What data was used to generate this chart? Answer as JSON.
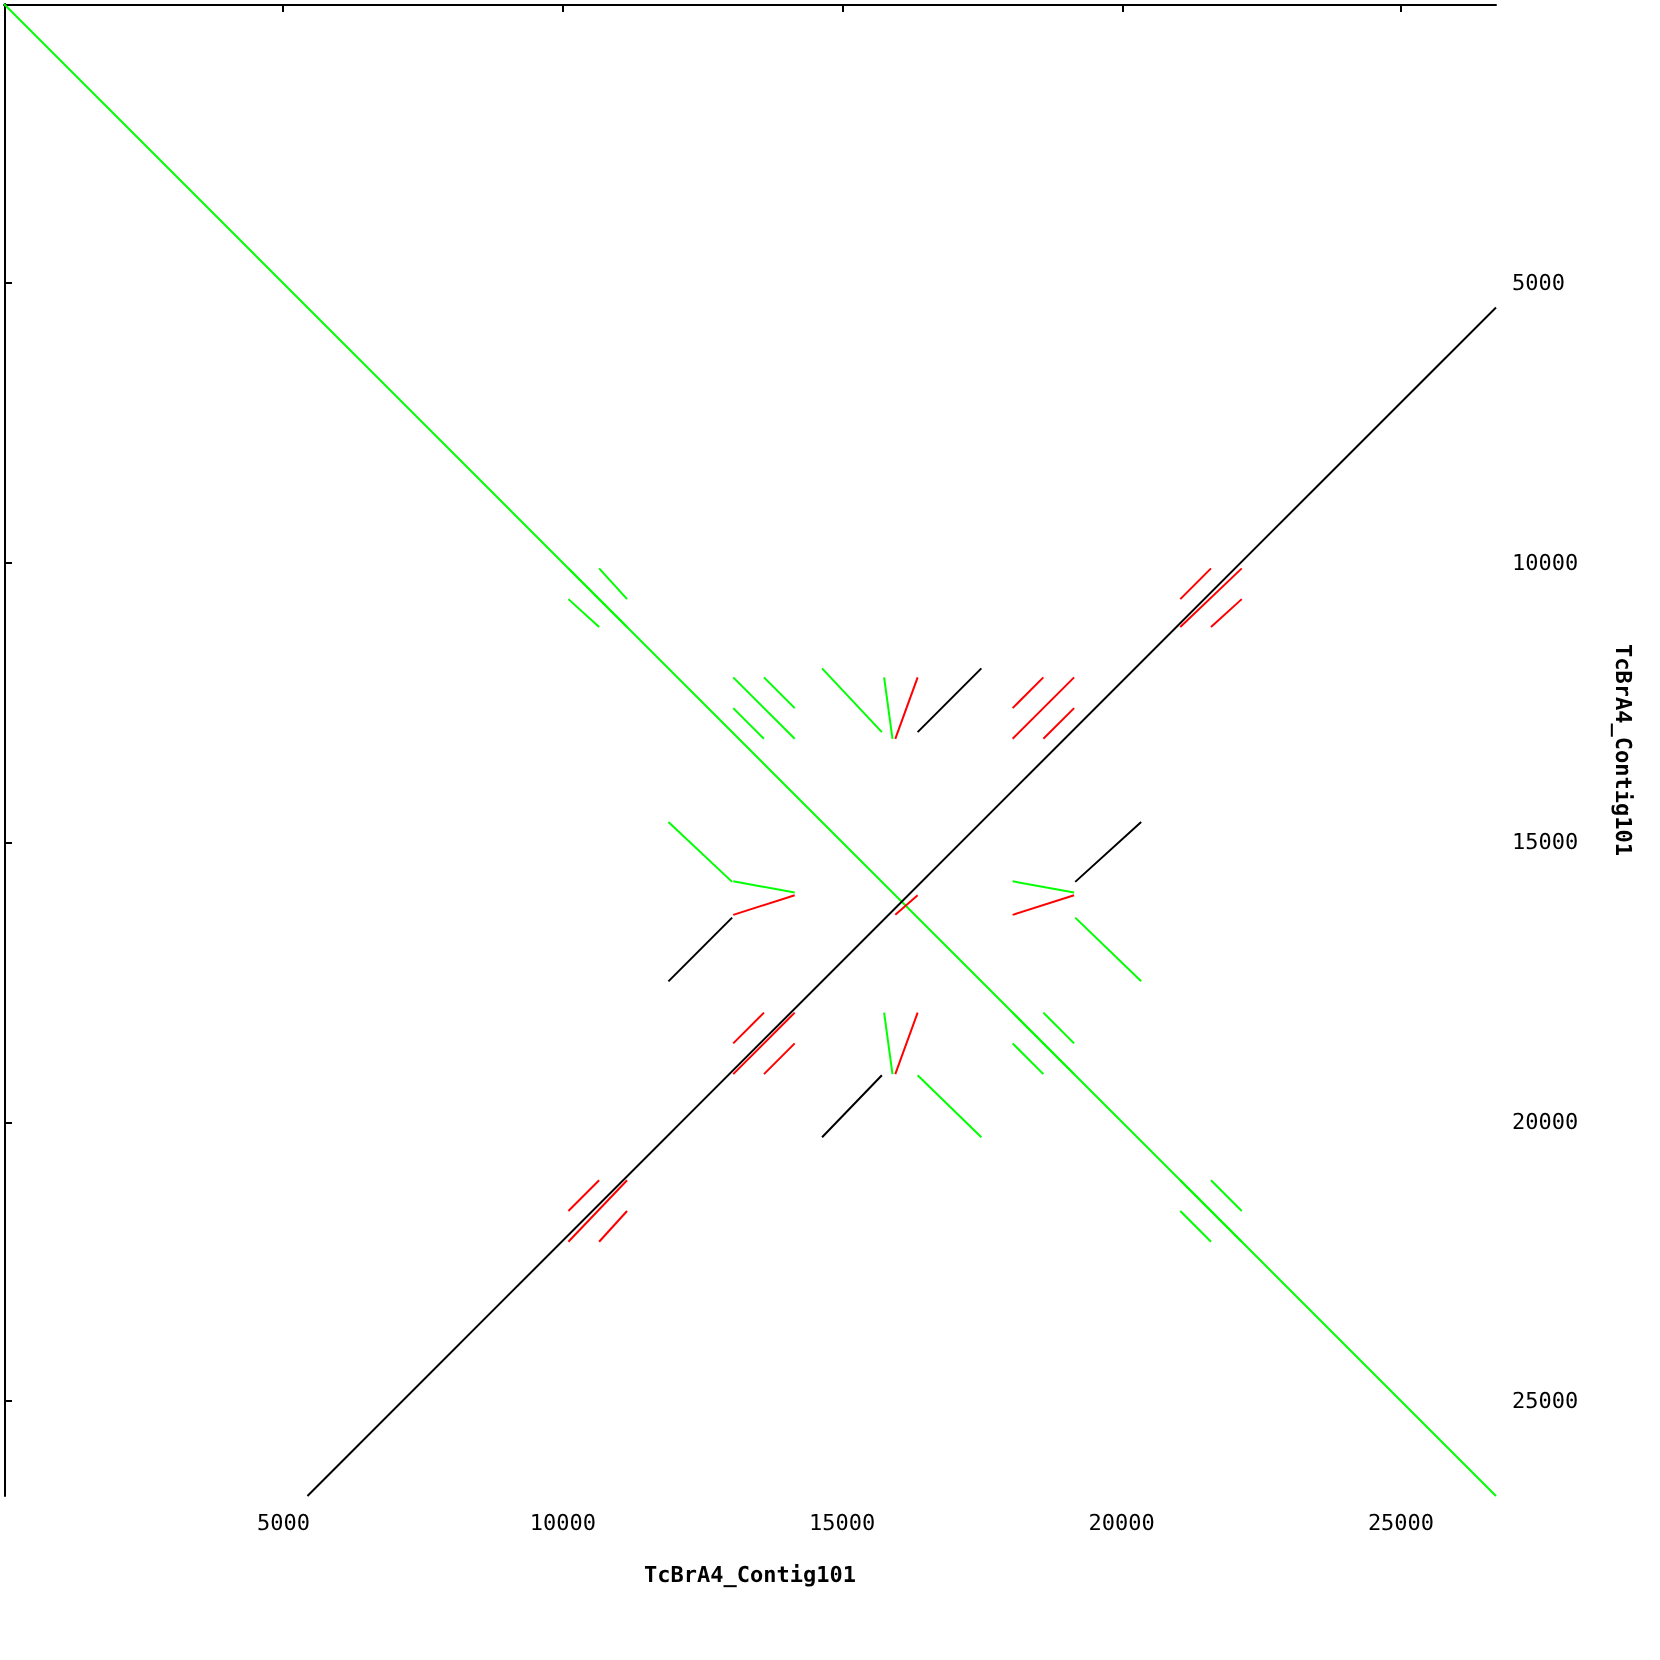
{
  "chart_data": {
    "type": "line",
    "xlabel": "TcBrA4_Contig101",
    "ylabel": "TcBrA4_Contig101",
    "xlim": [
      0,
      26700
    ],
    "ylim": [
      26700,
      0
    ],
    "xticks": [
      5000,
      10000,
      15000,
      20000,
      25000
    ],
    "yticks": [
      5000,
      10000,
      15000,
      20000,
      25000
    ],
    "grid": false,
    "series": [
      {
        "color": "#00ff00",
        "x": [
          0,
          26700
        ],
        "values": [
          0,
          26700
        ]
      },
      {
        "color": "#000000",
        "x": [
          5430,
          26700
        ],
        "values": [
          26700,
          5430
        ]
      },
      {
        "color": "#00ff00",
        "x": [
          14640,
          15710,
          null,
          11890,
          13030,
          null,
          17490,
          16350,
          null,
          20350,
          19170
        ],
        "values": [
          11890,
          13030,
          null,
          14640,
          15710,
          null,
          20280,
          19170,
          null,
          17490,
          16350
        ]
      },
      {
        "color": "#000000",
        "x": [
          17490,
          16350,
          null,
          11890,
          13030,
          null,
          20350,
          19170,
          null,
          14640,
          15710
        ],
        "values": [
          11890,
          13030,
          null,
          17490,
          16350,
          null,
          14640,
          15710,
          null,
          20280,
          19170
        ]
      },
      {
        "color": "#00ff00",
        "x": [
          10100,
          11150
        ],
        "values": [
          10100,
          11150
        ]
      },
      {
        "color": "#00ff00",
        "x": [
          10100,
          10650
        ],
        "values": [
          10650,
          11150
        ]
      },
      {
        "color": "#00ff00",
        "x": [
          10650,
          11150
        ],
        "values": [
          10100,
          10650
        ]
      },
      {
        "color": "#00ff00",
        "x": [
          13050,
          14150
        ],
        "values": [
          12050,
          13150
        ]
      },
      {
        "color": "#00ff00",
        "x": [
          13050,
          13600
        ],
        "values": [
          12600,
          13150
        ]
      },
      {
        "color": "#00ff00",
        "x": [
          13600,
          14150
        ],
        "values": [
          12050,
          12600
        ]
      },
      {
        "color": "#00ff00",
        "x": [
          18050,
          19150
        ],
        "values": [
          18050,
          19150
        ]
      },
      {
        "color": "#00ff00",
        "x": [
          18050,
          18600
        ],
        "values": [
          18600,
          19150
        ]
      },
      {
        "color": "#00ff00",
        "x": [
          18600,
          19150
        ],
        "values": [
          18050,
          18600
        ]
      },
      {
        "color": "#00ff00",
        "x": [
          21050,
          22150
        ],
        "values": [
          21050,
          22150
        ]
      },
      {
        "color": "#00ff00",
        "x": [
          21050,
          21600
        ],
        "values": [
          21600,
          22150
        ]
      },
      {
        "color": "#00ff00",
        "x": [
          21600,
          22150
        ],
        "values": [
          21050,
          21600
        ]
      },
      {
        "color": "#00ff00",
        "x": [
          15750,
          15900
        ],
        "values": [
          12050,
          13150
        ]
      },
      {
        "color": "#00ff00",
        "x": [
          15750,
          15900
        ],
        "values": [
          18050,
          19150
        ]
      },
      {
        "color": "#00ff00",
        "x": [
          13050,
          14150
        ],
        "values": [
          15700,
          15900
        ]
      },
      {
        "color": "#00ff00",
        "x": [
          18050,
          19150
        ],
        "values": [
          15700,
          15900
        ]
      },
      {
        "color": "#ff0000",
        "x": [
          18050,
          19150
        ],
        "values": [
          13150,
          12050
        ]
      },
      {
        "color": "#ff0000",
        "x": [
          18050,
          18600
        ],
        "values": [
          12600,
          12050
        ]
      },
      {
        "color": "#ff0000",
        "x": [
          18600,
          19150
        ],
        "values": [
          13150,
          12600
        ]
      },
      {
        "color": "#ff0000",
        "x": [
          13050,
          14150
        ],
        "values": [
          19150,
          18050
        ]
      },
      {
        "color": "#ff0000",
        "x": [
          13050,
          13600
        ],
        "values": [
          18600,
          18050
        ]
      },
      {
        "color": "#ff0000",
        "x": [
          13600,
          14150
        ],
        "values": [
          19150,
          18600
        ]
      },
      {
        "color": "#ff0000",
        "x": [
          10100,
          11150
        ],
        "values": [
          22150,
          21050
        ]
      },
      {
        "color": "#ff0000",
        "x": [
          10100,
          10650
        ],
        "values": [
          21600,
          21050
        ]
      },
      {
        "color": "#ff0000",
        "x": [
          10650,
          11150
        ],
        "values": [
          22150,
          21600
        ]
      },
      {
        "color": "#ff0000",
        "x": [
          21050,
          22150
        ],
        "values": [
          11150,
          10100
        ]
      },
      {
        "color": "#ff0000",
        "x": [
          21050,
          21600
        ],
        "values": [
          10650,
          10100
        ]
      },
      {
        "color": "#ff0000",
        "x": [
          21600,
          22150
        ],
        "values": [
          11150,
          10650
        ]
      },
      {
        "color": "#ff0000",
        "x": [
          15950,
          16350
        ],
        "values": [
          13150,
          12050
        ]
      },
      {
        "color": "#ff0000",
        "x": [
          15950,
          16350
        ],
        "values": [
          19150,
          18050
        ]
      },
      {
        "color": "#ff0000",
        "x": [
          13050,
          14150
        ],
        "values": [
          16300,
          15950
        ]
      },
      {
        "color": "#ff0000",
        "x": [
          18050,
          19150
        ],
        "values": [
          16300,
          15950
        ]
      },
      {
        "color": "#ff0000",
        "x": [
          15950,
          16350
        ],
        "values": [
          16300,
          15950
        ]
      }
    ]
  }
}
